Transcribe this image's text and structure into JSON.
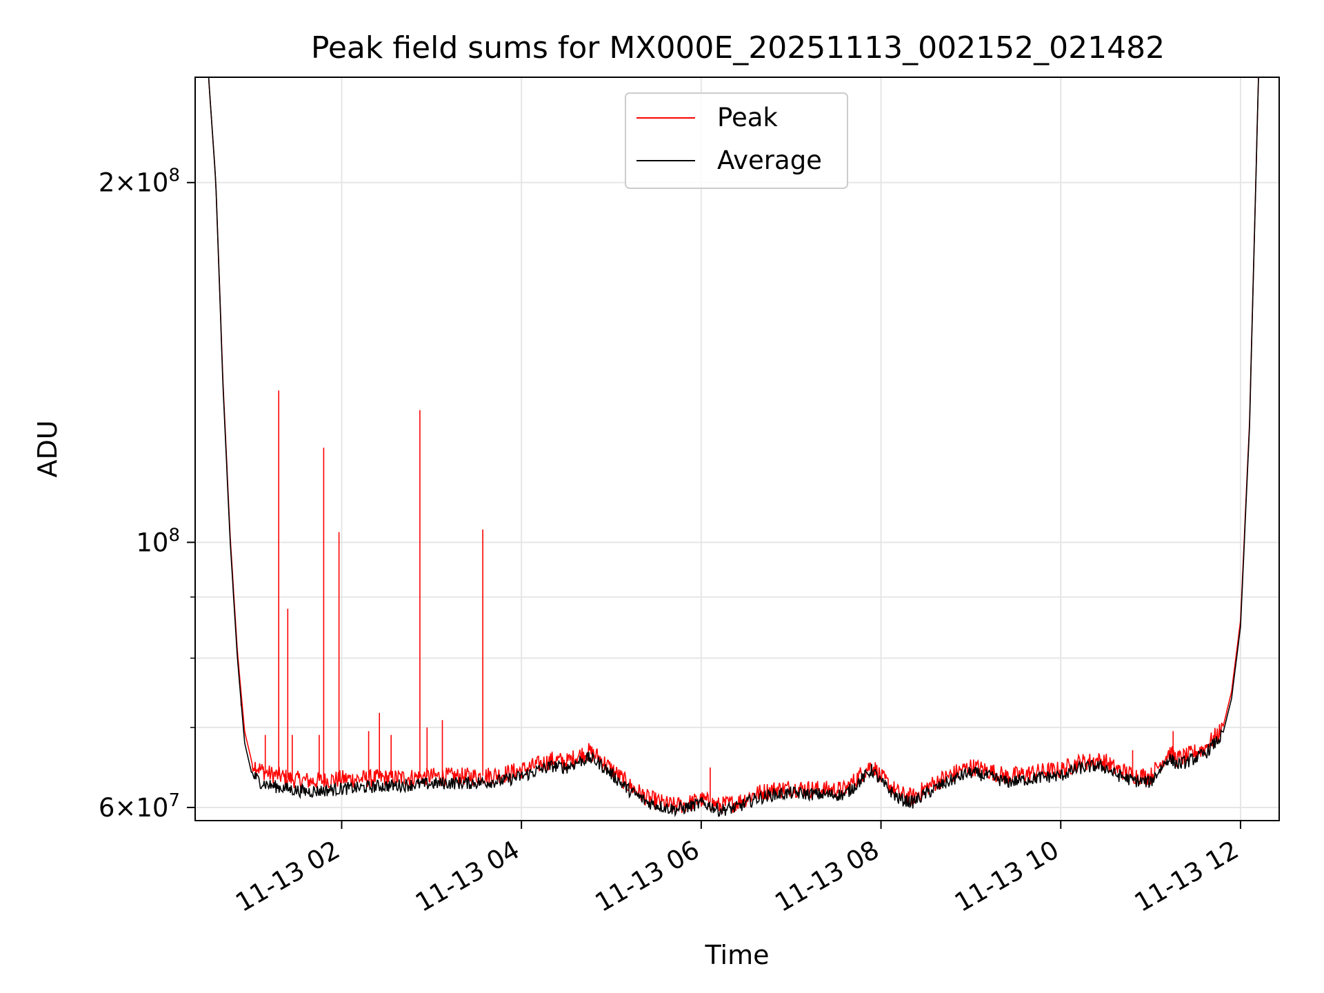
{
  "chart_data": {
    "type": "line",
    "title": "Peak field sums for MX000E_20251113_002152_021482",
    "xlabel": "Time",
    "ylabel": "ADU",
    "x_unit": "hours since 11-13 00:00",
    "xlim": [
      0.37,
      12.43
    ],
    "y_scale": "log",
    "ylim": [
      58500000,
      245000000
    ],
    "x_ticks": [
      {
        "value": 2,
        "label": "11-13 02"
      },
      {
        "value": 4,
        "label": "11-13 04"
      },
      {
        "value": 6,
        "label": "11-13 06"
      },
      {
        "value": 8,
        "label": "11-13 08"
      },
      {
        "value": 10,
        "label": "11-13 10"
      },
      {
        "value": 12,
        "label": "11-13 12"
      }
    ],
    "y_major_ticks": [
      {
        "value": 200000000,
        "mant": "2",
        "exp": "8"
      },
      {
        "value": 100000000,
        "mant": "",
        "exp": "8"
      },
      {
        "value": 60000000,
        "mant": "6",
        "exp": "7"
      }
    ],
    "y_minor_grid": [
      70000000,
      80000000,
      90000000
    ],
    "legend": {
      "position": "upper center",
      "entries": [
        {
          "label": "Peak",
          "color": "#ff0000"
        },
        {
          "label": "Average",
          "color": "#000000"
        }
      ]
    },
    "series": [
      {
        "name": "Average",
        "color": "#000000",
        "x": [
          0.52,
          0.6,
          0.68,
          0.76,
          0.84,
          0.92,
          1.0,
          1.1,
          1.2,
          1.3,
          1.4,
          1.5,
          1.6,
          1.7,
          1.8,
          1.9,
          2.0,
          2.2,
          2.4,
          2.6,
          2.8,
          3.0,
          3.2,
          3.4,
          3.6,
          3.8,
          4.0,
          4.2,
          4.35,
          4.5,
          4.65,
          4.75,
          4.85,
          5.0,
          5.2,
          5.4,
          5.6,
          5.7,
          5.8,
          6.0,
          6.1,
          6.2,
          6.4,
          6.6,
          6.8,
          7.0,
          7.2,
          7.4,
          7.6,
          7.8,
          7.9,
          8.0,
          8.2,
          8.35,
          8.5,
          8.7,
          8.9,
          9.0,
          9.2,
          9.4,
          9.6,
          9.8,
          10.0,
          10.2,
          10.4,
          10.5,
          10.6,
          10.8,
          11.0,
          11.1,
          11.2,
          11.3,
          11.4,
          11.6,
          11.8,
          11.9,
          12.0,
          12.1,
          12.2
        ],
        "y": [
          245000000,
          200000000,
          135000000,
          100000000,
          80000000,
          68000000,
          64000000,
          63000000,
          62600000,
          62400000,
          62200000,
          62000000,
          61900000,
          61900000,
          62000000,
          62100000,
          62200000,
          62300000,
          62500000,
          62600000,
          62700000,
          62800000,
          62900000,
          62900000,
          63000000,
          63200000,
          63700000,
          64500000,
          65000000,
          64800000,
          65600000,
          66000000,
          65500000,
          64000000,
          62000000,
          60600000,
          60000000,
          59800000,
          59900000,
          60500000,
          60200000,
          59700000,
          60000000,
          61000000,
          61500000,
          61700000,
          61600000,
          61500000,
          61500000,
          63500000,
          64500000,
          63000000,
          61000000,
          60600000,
          61600000,
          62800000,
          63800000,
          64200000,
          63700000,
          63000000,
          63300000,
          63600000,
          63800000,
          64700000,
          65000000,
          64800000,
          64000000,
          63200000,
          63000000,
          64500000,
          66000000,
          65200000,
          65500000,
          66500000,
          69000000,
          74000000,
          85000000,
          125000000,
          245000000
        ]
      },
      {
        "name": "Peak",
        "color": "#ff0000",
        "x": [
          0.52,
          0.6,
          0.68,
          0.76,
          0.84,
          0.92,
          1.0,
          1.1,
          1.2,
          1.3,
          1.4,
          1.5,
          1.6,
          1.7,
          1.8,
          1.9,
          2.0,
          2.2,
          2.4,
          2.6,
          2.8,
          3.0,
          3.2,
          3.4,
          3.6,
          3.8,
          4.0,
          4.2,
          4.35,
          4.5,
          4.65,
          4.75,
          4.85,
          5.0,
          5.2,
          5.4,
          5.6,
          5.7,
          5.8,
          6.0,
          6.1,
          6.2,
          6.4,
          6.6,
          6.8,
          7.0,
          7.2,
          7.4,
          7.6,
          7.8,
          7.9,
          8.0,
          8.2,
          8.35,
          8.5,
          8.7,
          8.9,
          9.0,
          9.2,
          9.4,
          9.6,
          9.8,
          10.0,
          10.2,
          10.4,
          10.5,
          10.6,
          10.8,
          11.0,
          11.1,
          11.2,
          11.3,
          11.4,
          11.6,
          11.8,
          11.9,
          12.0,
          12.1,
          12.2
        ],
        "y": [
          245000000,
          200000000,
          136000000,
          101000000,
          81000000,
          69500000,
          65500000,
          64500000,
          64000000,
          63800000,
          63500000,
          63300000,
          63200000,
          63100000,
          63200000,
          63300000,
          63400000,
          63400000,
          63500000,
          63500000,
          63600000,
          63700000,
          63700000,
          63700000,
          63800000,
          64000000,
          64500000,
          65200000,
          65800000,
          65500000,
          66400000,
          66800000,
          66200000,
          64600000,
          62600000,
          61100000,
          60400000,
          60200000,
          60300000,
          60900000,
          60600000,
          60200000,
          60600000,
          61600000,
          62100000,
          62300000,
          62200000,
          62100000,
          62100000,
          64200000,
          65200000,
          63600000,
          61600000,
          61200000,
          62300000,
          63500000,
          64500000,
          64900000,
          64400000,
          63700000,
          64000000,
          64300000,
          64500000,
          65400000,
          65700000,
          65500000,
          64700000,
          63900000,
          63700000,
          65200000,
          66700000,
          65900000,
          66200000,
          67300000,
          69800000,
          75000000,
          86000000,
          126000000,
          245000000
        ],
        "spikes": [
          {
            "x": 1.3,
            "y": 134000000
          },
          {
            "x": 1.4,
            "y": 88000000
          },
          {
            "x": 1.8,
            "y": 120000000
          },
          {
            "x": 1.97,
            "y": 102000000
          },
          {
            "x": 2.87,
            "y": 129000000
          },
          {
            "x": 3.57,
            "y": 102500000
          },
          {
            "x": 2.42,
            "y": 72000000
          },
          {
            "x": 3.12,
            "y": 71000000
          },
          {
            "x": 0.88,
            "y": 73000000
          },
          {
            "x": 1.15,
            "y": 69000000
          },
          {
            "x": 1.45,
            "y": 69000000
          },
          {
            "x": 1.75,
            "y": 69000000
          },
          {
            "x": 2.3,
            "y": 69500000
          },
          {
            "x": 2.55,
            "y": 69000000
          },
          {
            "x": 2.95,
            "y": 70000000
          },
          {
            "x": 6.1,
            "y": 64800000
          },
          {
            "x": 11.25,
            "y": 69500000
          },
          {
            "x": 10.8,
            "y": 67000000
          }
        ]
      }
    ]
  }
}
